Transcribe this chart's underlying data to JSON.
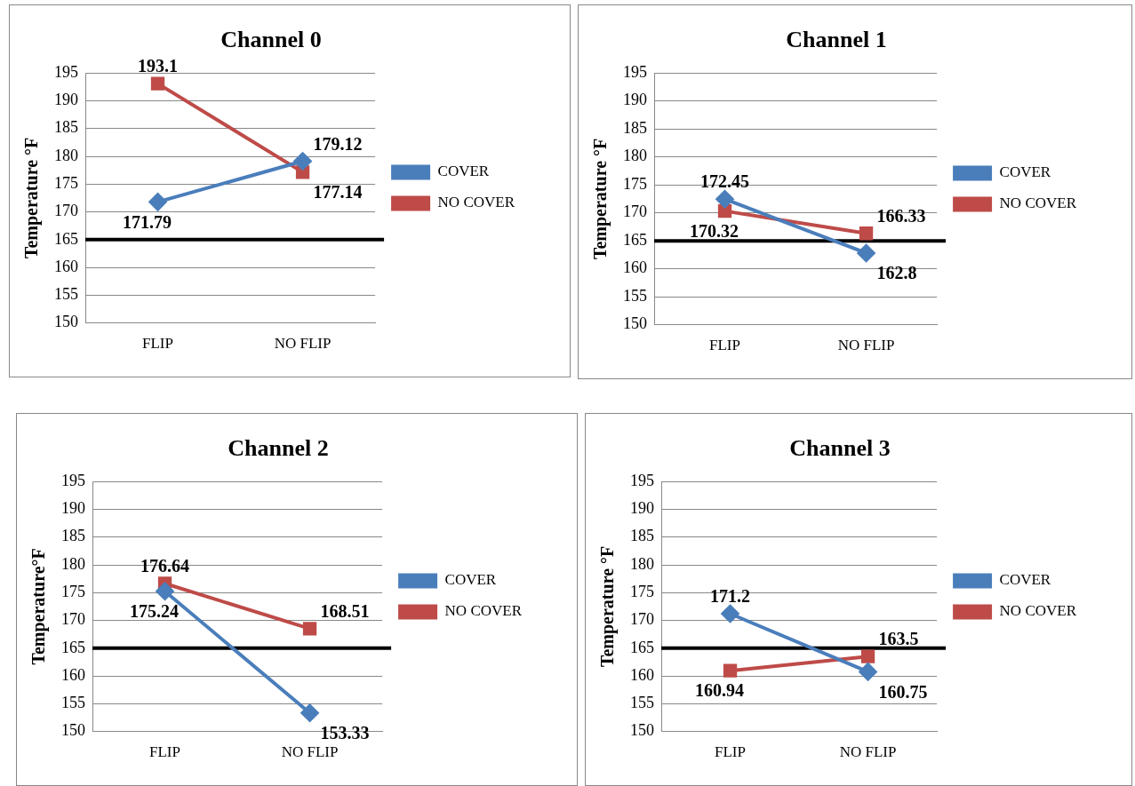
{
  "chart_data": [
    {
      "type": "line",
      "title": "Channel 0",
      "ylabel": "Temperature °F",
      "categories": [
        "FLIP",
        "NO FLIP"
      ],
      "ylim": [
        150,
        195
      ],
      "yticks": [
        150,
        155,
        160,
        165,
        170,
        175,
        180,
        185,
        190,
        195
      ],
      "grid": "y",
      "legend": "right",
      "data_labels": true,
      "line_style": "solid",
      "series": [
        {
          "name": "COVER",
          "color": "#4a7ebb",
          "marker": "diamond",
          "values": [
            171.79,
            179.12
          ]
        },
        {
          "name": "NO COVER",
          "color": "#be4b48",
          "marker": "square",
          "values": [
            193.1,
            177.14
          ]
        }
      ],
      "ref_lines": [
        {
          "axis": "y",
          "value": 165,
          "color": "#000000"
        }
      ]
    },
    {
      "type": "line",
      "title": "Channel 1",
      "ylabel": "Temperature °F",
      "categories": [
        "FLIP",
        "NO FLIP"
      ],
      "ylim": [
        150,
        195
      ],
      "yticks": [
        150,
        155,
        160,
        165,
        170,
        175,
        180,
        185,
        190,
        195
      ],
      "grid": "y",
      "legend": "right",
      "data_labels": true,
      "line_style": "solid",
      "series": [
        {
          "name": "COVER",
          "color": "#4a7ebb",
          "marker": "diamond",
          "values": [
            172.45,
            162.8
          ]
        },
        {
          "name": "NO COVER",
          "color": "#be4b48",
          "marker": "square",
          "values": [
            170.32,
            166.33
          ]
        }
      ],
      "ref_lines": [
        {
          "axis": "y",
          "value": 165,
          "color": "#000000"
        }
      ]
    },
    {
      "type": "line",
      "title": "Channel 2",
      "ylabel": "Temperature°F",
      "categories": [
        "FLIP",
        "NO FLIP"
      ],
      "ylim": [
        150,
        195
      ],
      "yticks": [
        150,
        155,
        160,
        165,
        170,
        175,
        180,
        185,
        190,
        195
      ],
      "grid": "y",
      "legend": "right",
      "data_labels": true,
      "line_style": "solid",
      "series": [
        {
          "name": "COVER",
          "color": "#4a7ebb",
          "marker": "diamond",
          "values": [
            175.24,
            153.33
          ]
        },
        {
          "name": "NO COVER",
          "color": "#be4b48",
          "marker": "square",
          "values": [
            176.64,
            168.51
          ]
        }
      ],
      "ref_lines": [
        {
          "axis": "y",
          "value": 165,
          "color": "#000000"
        }
      ]
    },
    {
      "type": "line",
      "title": "Channel 3",
      "ylabel": "Temperature °F",
      "categories": [
        "FLIP",
        "NO FLIP"
      ],
      "ylim": [
        150,
        195
      ],
      "yticks": [
        150,
        155,
        160,
        165,
        170,
        175,
        180,
        185,
        190,
        195
      ],
      "grid": "y",
      "legend": "right",
      "data_labels": true,
      "line_style": "solid",
      "series": [
        {
          "name": "COVER",
          "color": "#4a7ebb",
          "marker": "diamond",
          "values": [
            171.2,
            160.75
          ]
        },
        {
          "name": "NO COVER",
          "color": "#be4b48",
          "marker": "square",
          "values": [
            160.94,
            163.5
          ]
        }
      ],
      "ref_lines": [
        {
          "axis": "y",
          "value": 165,
          "color": "#000000"
        }
      ]
    }
  ]
}
